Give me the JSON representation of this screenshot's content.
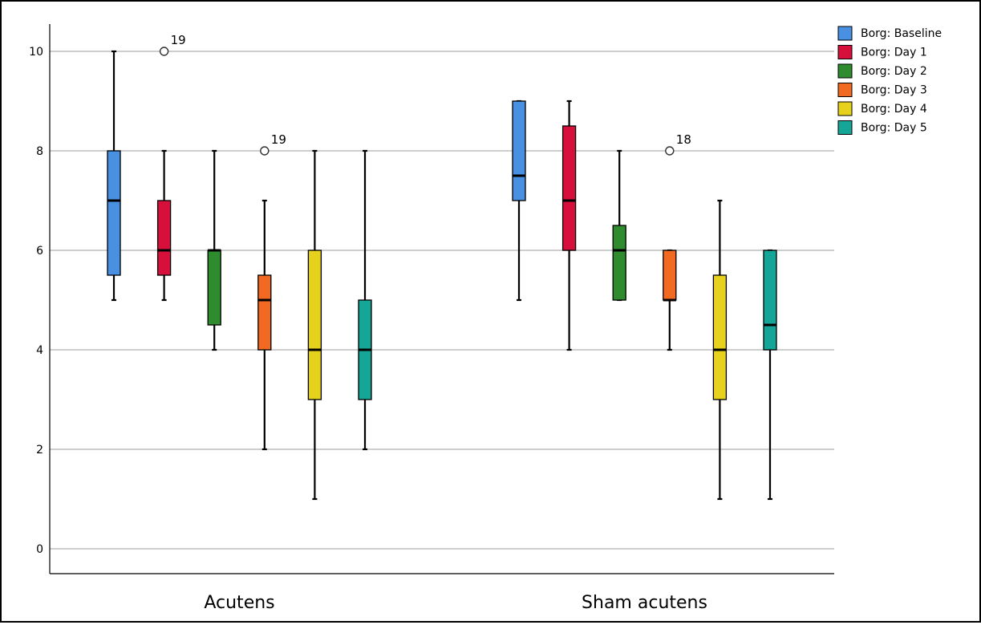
{
  "chart_data": {
    "type": "boxplot",
    "title": "",
    "xlabel": "",
    "ylabel": "",
    "ylim": [
      -0.5,
      10.55
    ],
    "yticks": [
      0,
      2,
      4,
      6,
      8,
      10
    ],
    "ytick_labels": [
      "0",
      "2",
      "4",
      "6",
      "8",
      "10"
    ],
    "grid": "horizontal",
    "legend_position": "right",
    "categories": [
      "Acutens",
      "Sham acutens"
    ],
    "series": [
      {
        "name": "Borg: Baseline",
        "color": "#4a90e2",
        "boxes": [
          {
            "min": 5,
            "q1": 5.5,
            "median": 7,
            "q3": 8,
            "max": 10,
            "outliers": []
          },
          {
            "min": 5,
            "q1": 7,
            "median": 7.5,
            "q3": 9,
            "max": 9,
            "outliers": []
          }
        ]
      },
      {
        "name": "Borg: Day 1",
        "color": "#d6103b",
        "boxes": [
          {
            "min": 5,
            "q1": 5.5,
            "median": 6,
            "q3": 7,
            "max": 8,
            "outliers": [
              {
                "value": 10,
                "label": "19"
              }
            ]
          },
          {
            "min": 4,
            "q1": 6,
            "median": 7,
            "q3": 8.5,
            "max": 9,
            "outliers": []
          }
        ]
      },
      {
        "name": "Borg: Day 2",
        "color": "#2e8b2e",
        "boxes": [
          {
            "min": 4,
            "q1": 4.5,
            "median": 6,
            "q3": 6,
            "max": 8,
            "outliers": []
          },
          {
            "min": 5,
            "q1": 5,
            "median": 6,
            "q3": 6.5,
            "max": 8,
            "outliers": []
          }
        ]
      },
      {
        "name": "Borg: Day 3",
        "color": "#f26a21",
        "boxes": [
          {
            "min": 2,
            "q1": 4,
            "median": 5,
            "q3": 5.5,
            "max": 7,
            "outliers": [
              {
                "value": 8,
                "label": "19"
              }
            ]
          },
          {
            "min": 4,
            "q1": 5,
            "median": 5,
            "q3": 6,
            "max": 6,
            "outliers": [
              {
                "value": 8,
                "label": "18"
              }
            ]
          }
        ]
      },
      {
        "name": "Borg: Day 4",
        "color": "#e6d21c",
        "boxes": [
          {
            "min": 1,
            "q1": 3,
            "median": 4,
            "q3": 6,
            "max": 8,
            "outliers": []
          },
          {
            "min": 1,
            "q1": 3,
            "median": 4,
            "q3": 5.5,
            "max": 7,
            "outliers": []
          }
        ]
      },
      {
        "name": "Borg: Day 5",
        "color": "#16a697",
        "boxes": [
          {
            "min": 2,
            "q1": 3,
            "median": 4,
            "q3": 5,
            "max": 8,
            "outliers": []
          },
          {
            "min": 1,
            "q1": 4,
            "median": 4.5,
            "q3": 6,
            "max": 6,
            "outliers": []
          }
        ]
      }
    ]
  }
}
